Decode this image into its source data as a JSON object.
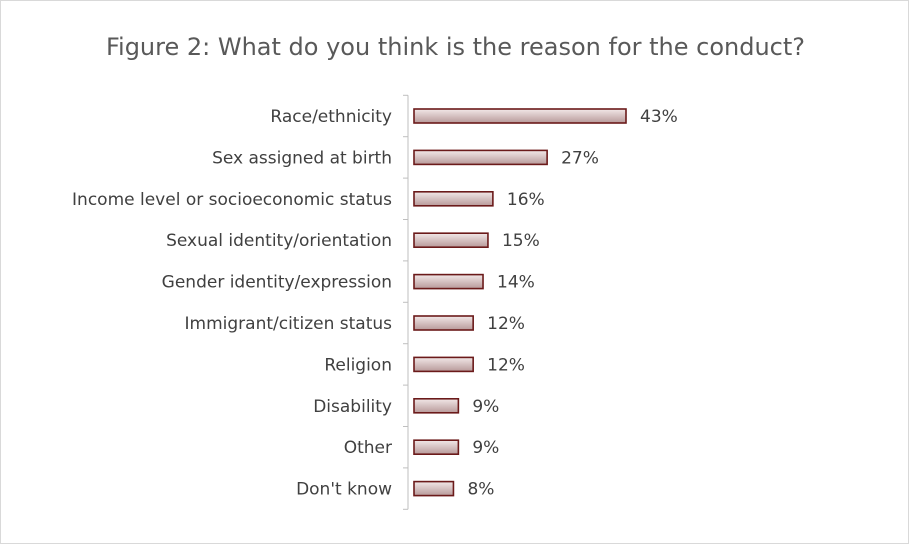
{
  "chart_data": {
    "type": "bar",
    "orientation": "horizontal",
    "title": "Figure 2: What do you think is the reason for the conduct?",
    "categories": [
      "Race/ethnicity",
      "Sex assigned at birth",
      "Income level or socioeconomic status",
      "Sexual identity/orientation",
      "Gender identity/expression",
      "Immigrant/citizen status",
      "Religion",
      "Disability",
      "Other",
      "Don't know"
    ],
    "values": [
      43,
      27,
      16,
      15,
      14,
      12,
      12,
      9,
      9,
      8
    ],
    "value_labels": [
      "43%",
      "27%",
      "16%",
      "15%",
      "14%",
      "12%",
      "12%",
      "9%",
      "9%",
      "8%"
    ],
    "unit": "%",
    "xlim": [
      0,
      50
    ],
    "grid": false,
    "legend": "none",
    "colors": {
      "bar_fill_start": "#f2e8e8",
      "bar_fill_end": "#b89a9a",
      "bar_stroke": "#6b1a1a",
      "axis": "#bfbfbf",
      "text": "#404040",
      "title": "#595959"
    }
  }
}
